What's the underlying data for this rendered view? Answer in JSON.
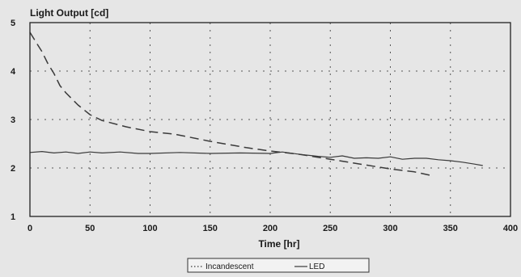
{
  "chart_data": {
    "type": "line",
    "title": "Light Output [cd]",
    "xlabel": "Time [hr]",
    "ylabel": "",
    "xlim": [
      0,
      400
    ],
    "ylim": [
      1,
      5
    ],
    "x_ticks": [
      0,
      50,
      100,
      150,
      200,
      250,
      300,
      350,
      400
    ],
    "y_ticks": [
      1,
      2,
      3,
      4,
      5
    ],
    "grid": true,
    "legend_position": "bottom-center",
    "series": [
      {
        "name": "Incandescent",
        "color": "#3a3a3a",
        "line_style": "dashed",
        "points": [
          [
            0,
            4.8
          ],
          [
            5,
            4.6
          ],
          [
            10,
            4.4
          ],
          [
            15,
            4.15
          ],
          [
            20,
            3.95
          ],
          [
            25,
            3.7
          ],
          [
            30,
            3.55
          ],
          [
            40,
            3.3
          ],
          [
            50,
            3.1
          ],
          [
            60,
            2.98
          ],
          [
            80,
            2.85
          ],
          [
            100,
            2.75
          ],
          [
            120,
            2.7
          ],
          [
            150,
            2.55
          ],
          [
            180,
            2.42
          ],
          [
            200,
            2.35
          ],
          [
            225,
            2.28
          ],
          [
            250,
            2.18
          ],
          [
            275,
            2.08
          ],
          [
            300,
            1.98
          ],
          [
            320,
            1.92
          ],
          [
            333,
            1.85
          ]
        ]
      },
      {
        "name": "LED",
        "color": "#3a3a3a",
        "line_style": "solid",
        "points": [
          [
            0,
            2.32
          ],
          [
            10,
            2.34
          ],
          [
            20,
            2.31
          ],
          [
            30,
            2.33
          ],
          [
            40,
            2.3
          ],
          [
            50,
            2.33
          ],
          [
            60,
            2.31
          ],
          [
            75,
            2.33
          ],
          [
            90,
            2.3
          ],
          [
            100,
            2.3
          ],
          [
            125,
            2.32
          ],
          [
            150,
            2.3
          ],
          [
            175,
            2.31
          ],
          [
            200,
            2.3
          ],
          [
            210,
            2.33
          ],
          [
            225,
            2.28
          ],
          [
            240,
            2.24
          ],
          [
            250,
            2.22
          ],
          [
            260,
            2.25
          ],
          [
            270,
            2.2
          ],
          [
            280,
            2.21
          ],
          [
            290,
            2.2
          ],
          [
            300,
            2.23
          ],
          [
            310,
            2.18
          ],
          [
            320,
            2.2
          ],
          [
            330,
            2.2
          ],
          [
            340,
            2.17
          ],
          [
            350,
            2.15
          ],
          [
            360,
            2.12
          ],
          [
            370,
            2.08
          ],
          [
            377,
            2.05
          ]
        ]
      }
    ]
  }
}
